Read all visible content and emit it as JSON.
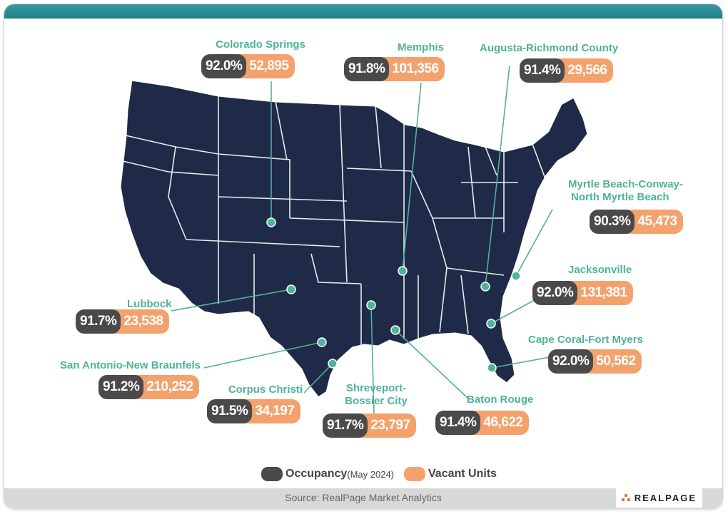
{
  "colors": {
    "accent_teal": "#4fb29a",
    "occupancy": "#4a4a4a",
    "vacant": "#f3a26d",
    "map_fill": "#1e2a47",
    "title_bar": "#2a8a93"
  },
  "markets": [
    {
      "name": "Colorado Springs",
      "occupancy": "92.0%",
      "vacant_units": "52,895"
    },
    {
      "name": "Memphis",
      "occupancy": "91.8%",
      "vacant_units": "101,356"
    },
    {
      "name": "Augusta-Richmond County",
      "occupancy": "91.4%",
      "vacant_units": "29,566"
    },
    {
      "name_line1": "Myrtle Beach-Conway-",
      "name_line2": "North Myrtle Beach",
      "occupancy": "90.3%",
      "vacant_units": "45,473"
    },
    {
      "name": "Jacksonville",
      "occupancy": "92.0%",
      "vacant_units": "131,381"
    },
    {
      "name": "Cape Coral-Fort Myers",
      "occupancy": "92.0%",
      "vacant_units": "50,562"
    },
    {
      "name": "Baton Rouge",
      "occupancy": "91.4%",
      "vacant_units": "46,622"
    },
    {
      "name_line1": "Shreveport-",
      "name_line2": "Bossier City",
      "occupancy": "91.7%",
      "vacant_units": "23,797"
    },
    {
      "name": "Corpus Christi",
      "occupancy": "91.5%",
      "vacant_units": "34,197"
    },
    {
      "name": "San Antonio-New Braunfels",
      "occupancy": "91.2%",
      "vacant_units": "210,252"
    },
    {
      "name": "Lubbock",
      "occupancy": "91.7%",
      "vacant_units": "23,538"
    }
  ],
  "legend": {
    "occupancy_label": "Occupancy",
    "occupancy_note": "(May 2024)",
    "vacant_label": "Vacant Units"
  },
  "footer": {
    "source": "Source: RealPage Market Analytics",
    "logo_text": "REALPAGE"
  }
}
